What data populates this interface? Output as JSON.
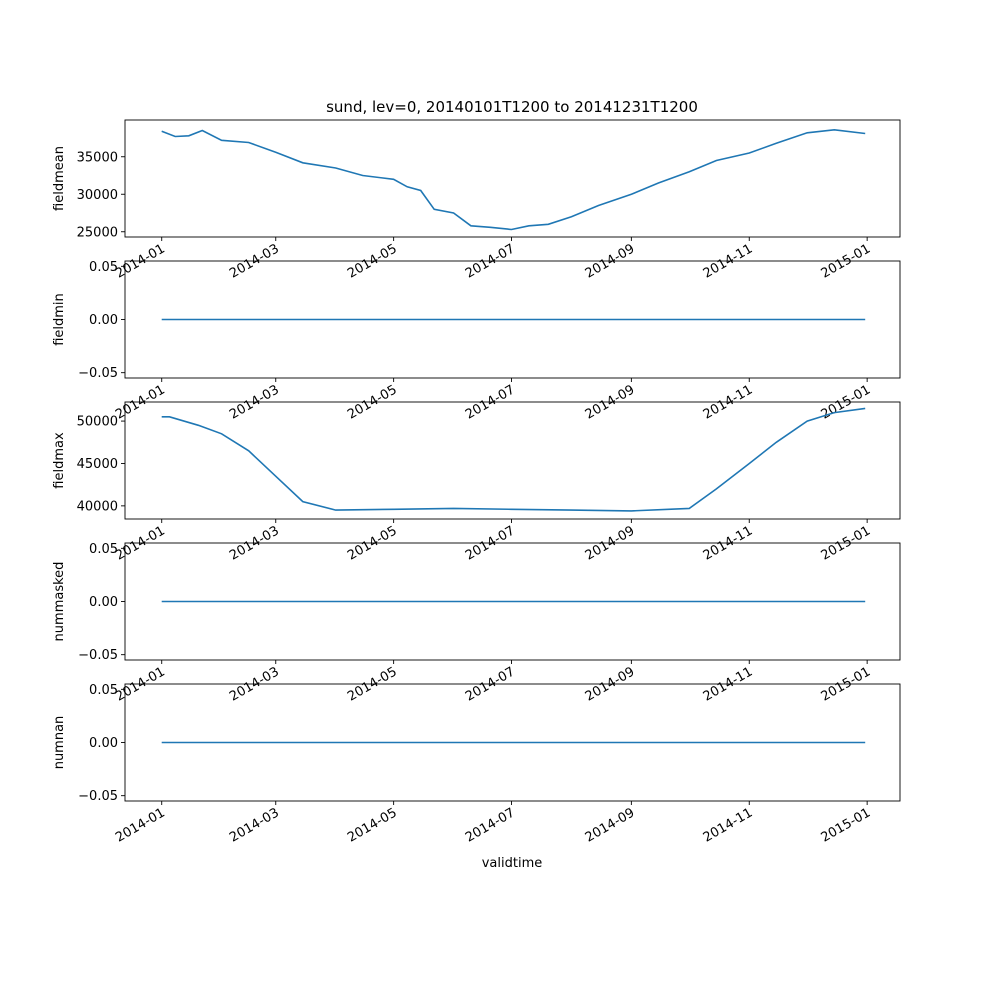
{
  "title": "sund, lev=0, 20140101T1200 to 20141231T1200",
  "xlabel": "validtime",
  "line_color": "#1f77b4",
  "x_ticks": [
    "2014-01",
    "2014-03",
    "2014-05",
    "2014-07",
    "2014-09",
    "2014-11",
    "2015-01"
  ],
  "chart_data": [
    {
      "type": "line",
      "ylabel": "fieldmean",
      "xlim": [
        "2013-12-13",
        "2015-01-18"
      ],
      "ylim": [
        24300,
        39900
      ],
      "y_ticks": [
        "25000",
        "30000",
        "35000"
      ],
      "y_tick_values": [
        25000,
        30000,
        35000
      ],
      "x": [
        "2014-01-01",
        "2014-01-08",
        "2014-01-15",
        "2014-01-22",
        "2014-02-01",
        "2014-02-15",
        "2014-03-01",
        "2014-03-15",
        "2014-04-01",
        "2014-04-15",
        "2014-05-01",
        "2014-05-08",
        "2014-05-15",
        "2014-05-22",
        "2014-06-01",
        "2014-06-10",
        "2014-06-20",
        "2014-07-01",
        "2014-07-10",
        "2014-07-20",
        "2014-08-01",
        "2014-08-15",
        "2014-09-01",
        "2014-09-15",
        "2014-10-01",
        "2014-10-15",
        "2014-11-01",
        "2014-11-15",
        "2014-12-01",
        "2014-12-15",
        "2014-12-31"
      ],
      "values": [
        38400,
        37700,
        37800,
        38500,
        37200,
        36900,
        35600,
        34200,
        33500,
        32500,
        32000,
        31000,
        30500,
        28000,
        27500,
        25800,
        25600,
        25300,
        25800,
        26000,
        27000,
        28500,
        30000,
        31500,
        33000,
        34500,
        35500,
        36800,
        38200,
        38600,
        38100
      ]
    },
    {
      "type": "line",
      "ylabel": "fieldmin",
      "xlim": [
        "2013-12-13",
        "2015-01-18"
      ],
      "ylim": [
        -0.055,
        0.055
      ],
      "y_ticks": [
        "−0.05",
        "0.00",
        "0.05"
      ],
      "y_tick_values": [
        -0.05,
        0,
        0.05
      ],
      "x": [
        "2014-01-01",
        "2014-12-31"
      ],
      "values": [
        0,
        0
      ]
    },
    {
      "type": "line",
      "ylabel": "fieldmax",
      "xlim": [
        "2013-12-13",
        "2015-01-18"
      ],
      "ylim": [
        38450,
        52250
      ],
      "y_ticks": [
        "40000",
        "45000",
        "50000"
      ],
      "y_tick_values": [
        40000,
        45000,
        50000
      ],
      "x": [
        "2014-01-01",
        "2014-01-05",
        "2014-01-20",
        "2014-02-01",
        "2014-02-15",
        "2014-03-01",
        "2014-03-15",
        "2014-04-01",
        "2014-05-01",
        "2014-06-01",
        "2014-07-01",
        "2014-08-01",
        "2014-09-01",
        "2014-10-01",
        "2014-10-15",
        "2014-11-01",
        "2014-11-15",
        "2014-12-01",
        "2014-12-15",
        "2014-12-31"
      ],
      "values": [
        50500,
        50500,
        49500,
        48500,
        46500,
        43500,
        40500,
        39500,
        39600,
        39700,
        39600,
        39500,
        39400,
        39700,
        42000,
        45000,
        47500,
        50000,
        51000,
        51500
      ]
    },
    {
      "type": "line",
      "ylabel": "nummasked",
      "xlim": [
        "2013-12-13",
        "2015-01-18"
      ],
      "ylim": [
        -0.055,
        0.055
      ],
      "y_ticks": [
        "−0.05",
        "0.00",
        "0.05"
      ],
      "y_tick_values": [
        -0.05,
        0,
        0.05
      ],
      "x": [
        "2014-01-01",
        "2014-12-31"
      ],
      "values": [
        0,
        0
      ]
    },
    {
      "type": "line",
      "ylabel": "numnan",
      "xlim": [
        "2013-12-13",
        "2015-01-18"
      ],
      "ylim": [
        -0.055,
        0.055
      ],
      "y_ticks": [
        "−0.05",
        "0.00",
        "0.05"
      ],
      "y_tick_values": [
        -0.05,
        0,
        0.05
      ],
      "x": [
        "2014-01-01",
        "2014-12-31"
      ],
      "values": [
        0,
        0
      ]
    }
  ]
}
